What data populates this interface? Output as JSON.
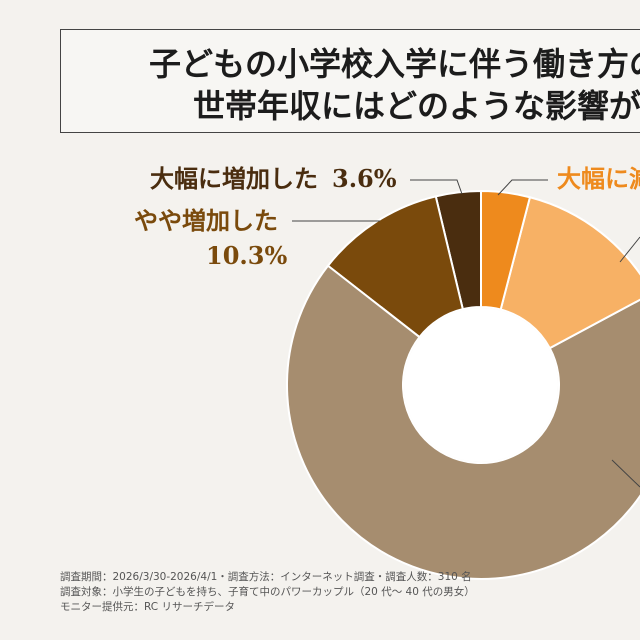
{
  "title": {
    "line1": "子どもの小学校入学に伴う働き方の変",
    "line2": "世帯年収にはどのような影響があり"
  },
  "chart_data": {
    "type": "pie",
    "categories": [
      "大幅に増加した",
      "やや増加した",
      "",
      "",
      ""
    ],
    "values": [
      3.6,
      10.3,
      65.7,
      12.6,
      3.9
    ],
    "colors": [
      "#4a2d0f",
      "#7a4a0c",
      "#a68d6f",
      "#f7b165",
      "#ee8a1d"
    ]
  },
  "labels": {
    "big_increase": "大幅に増加した",
    "big_increase_pct": "3.6%",
    "slight_increase": "やや増加した",
    "slight_increase_pct": "10.3%",
    "big_decrease_partial": "大幅に減"
  },
  "footer": {
    "line1": "調査期間：2026/3/30-2026/4/1・調査方法：インターネット調査・調査人数：310 名",
    "line2": "調査対象：小学生の子どもを持ち、子育て中のパワーカップル（20 代〜 40 代の男女）",
    "line3": "モニター提供元：RC リサーチデータ"
  }
}
